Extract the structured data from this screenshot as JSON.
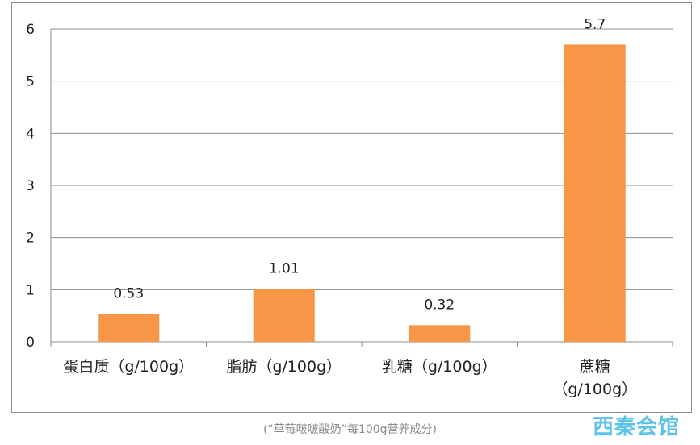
{
  "chart_data": {
    "type": "bar",
    "categories": [
      [
        "蛋白质（g/100g）"
      ],
      [
        "脂肪（g/100g）"
      ],
      [
        "乳糖（g/100g）"
      ],
      [
        "蔗糖",
        "（g/100g）"
      ]
    ],
    "values": [
      0.53,
      1.01,
      0.32,
      5.7
    ],
    "data_labels": [
      "0.53",
      "1.01",
      "0.32",
      "5.7"
    ],
    "y_ticks": [
      "0",
      "1",
      "2",
      "3",
      "4",
      "5",
      "6"
    ],
    "ylim": [
      0,
      6
    ],
    "grid": true,
    "legend": "none",
    "colors": {
      "bar": "#f79646",
      "grid": "#8c8c8c",
      "axis": "#8c8c8c",
      "text": "#222222"
    }
  },
  "caption": "(“草莓啵啵酸奶”每100g营养成分)",
  "watermark": "西秦会馆"
}
